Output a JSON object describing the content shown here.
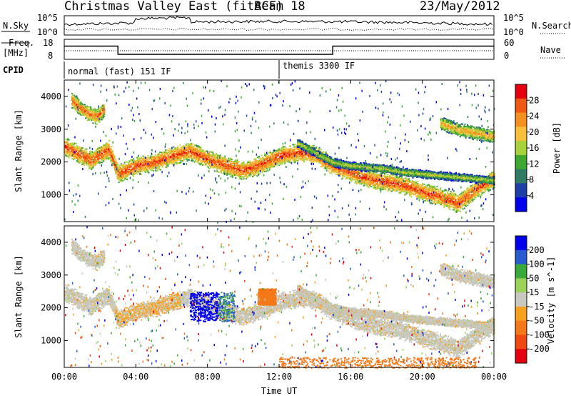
{
  "header": {
    "title": "Christmas Valley East (fitACF)",
    "beam": "Beam 18",
    "date": "23/May/2012"
  },
  "top_panels": {
    "nsky_label": "N.Sky",
    "nsky_ticks": [
      "10^5",
      "10^0"
    ],
    "nsearch_label": "N.Search",
    "nsearch_ticks": [
      "10^5",
      "10^0"
    ],
    "freq_label_1": "Freq.",
    "freq_label_2": "[MHz]",
    "freq_ticks": [
      "18",
      "8"
    ],
    "nave_label": "Nave",
    "nave_ticks": [
      "60",
      "0"
    ],
    "freq_values_mhz": {
      "low": 10.5,
      "high": 14.6
    },
    "freq_step_times_h": [
      3.0,
      15.0
    ]
  },
  "cpid": {
    "label": "CPID",
    "modes": [
      {
        "name": "normal (fast) 151 IF",
        "start_h": 0
      },
      {
        "name": "themis 3300 IF",
        "start_h": 12
      }
    ]
  },
  "colors": {
    "power_scale": [
      "#0000ee",
      "#1e3ea8",
      "#2f7a62",
      "#3ea830",
      "#a8d23a",
      "#f8c03a",
      "#f4901c",
      "#ee5812",
      "#e4000e"
    ],
    "velocity_scale": [
      "#0000ee",
      "#2a5ad2",
      "#3aa83a",
      "#9ad25a",
      "#c8c8c0",
      "#f8a020",
      "#f47818",
      "#f04810",
      "#e4000e"
    ]
  },
  "chart_data": [
    {
      "type": "heatmap",
      "name": "Power",
      "ylabel": "Slant Range [km]",
      "yticks": [
        1000,
        2000,
        3000,
        4000
      ],
      "ylim": [
        180,
        4500
      ],
      "xlim_hours": [
        0,
        24
      ],
      "colorbar_label": "Power [dB]",
      "colorbar_ticks": [
        4,
        8,
        12,
        16,
        20,
        24,
        28
      ],
      "colorbar_range": [
        0,
        32
      ],
      "echo_bands": [
        {
          "t": [
            0,
            0.5,
            1,
            1.5,
            2,
            2.5,
            3,
            4,
            5,
            6,
            7,
            8,
            9,
            10,
            11,
            12,
            13,
            14,
            15,
            16,
            17,
            18,
            19,
            20,
            21,
            22,
            23,
            24
          ],
          "r": [
            2500,
            2350,
            2200,
            2050,
            2250,
            2400,
            1650,
            1900,
            2000,
            2200,
            2350,
            2100,
            1900,
            1750,
            1950,
            2200,
            2300,
            2250,
            1900,
            1700,
            1500,
            1400,
            1300,
            1100,
            950,
            750,
            1200,
            1500
          ],
          "width": 300,
          "power": 18
        },
        {
          "t": [
            0.4,
            0.8,
            1.3,
            1.8,
            2.2
          ],
          "r": [
            3900,
            3700,
            3500,
            3400,
            3600
          ],
          "width": 250,
          "power": 16
        },
        {
          "t": [
            13,
            14,
            15,
            16,
            17,
            18,
            19,
            20,
            21,
            22,
            23,
            24
          ],
          "r": [
            2600,
            2300,
            2000,
            1900,
            1850,
            1800,
            1700,
            1650,
            1600,
            1550,
            1500,
            1450
          ],
          "width": 140,
          "power": 8
        },
        {
          "t": [
            21,
            22,
            23,
            24
          ],
          "r": [
            3200,
            3000,
            2900,
            2800
          ],
          "width": 220,
          "power": 13
        }
      ]
    },
    {
      "type": "heatmap",
      "name": "Velocity",
      "xlabel": "Time UT",
      "xticks": [
        "00:00",
        "04:00",
        "08:00",
        "12:00",
        "16:00",
        "20:00",
        "00:00"
      ],
      "ylabel": "Slant Range [km]",
      "yticks": [
        1000,
        2000,
        3000,
        4000
      ],
      "ylim": [
        180,
        4500
      ],
      "xlim_hours": [
        0,
        24
      ],
      "colorbar_label": "Velocity [m s^-1]",
      "colorbar_ticks": [
        200,
        100,
        50,
        15,
        -15,
        -50,
        -100,
        -200
      ],
      "features": [
        {
          "name": "ground scatter band",
          "velocity": 0
        },
        {
          "name": "strong positive patch",
          "t_range": [
            7,
            9.5
          ],
          "r_range": [
            1600,
            2500
          ],
          "velocity": 200
        },
        {
          "name": "negative patch",
          "t_range": [
            10.8,
            11.8
          ],
          "r_range": [
            2100,
            2600
          ],
          "velocity": -60
        },
        {
          "name": "near range negative",
          "t_range": [
            12,
            23
          ],
          "r_range": [
            180,
            500
          ],
          "velocity": -80
        }
      ]
    }
  ]
}
